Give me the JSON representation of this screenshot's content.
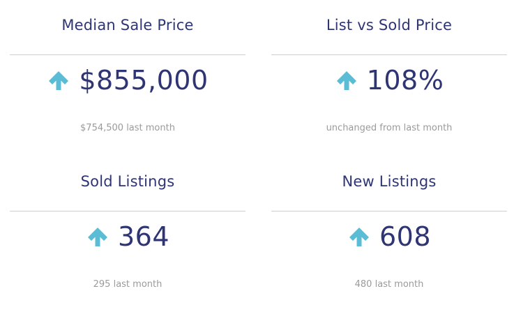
{
  "colors": {
    "title": "#2f3573",
    "value": "#2f3573",
    "arrow": "#5bbcd6",
    "subtext": "#9a9a9a",
    "divider": "#cfcfcf"
  },
  "cards": [
    {
      "title": "Median Sale Price",
      "value": "$855,000",
      "trend_icon": "arrow-up-icon",
      "subtext": "$754,500 last month"
    },
    {
      "title": "List vs Sold Price",
      "value": "108%",
      "trend_icon": "arrow-up-icon",
      "subtext": "unchanged from last month"
    },
    {
      "title": "Sold Listings",
      "value": "364",
      "trend_icon": "arrow-up-icon",
      "subtext": "295 last month"
    },
    {
      "title": "New Listings",
      "value": "608",
      "trend_icon": "arrow-up-icon",
      "subtext": "480 last month"
    }
  ]
}
